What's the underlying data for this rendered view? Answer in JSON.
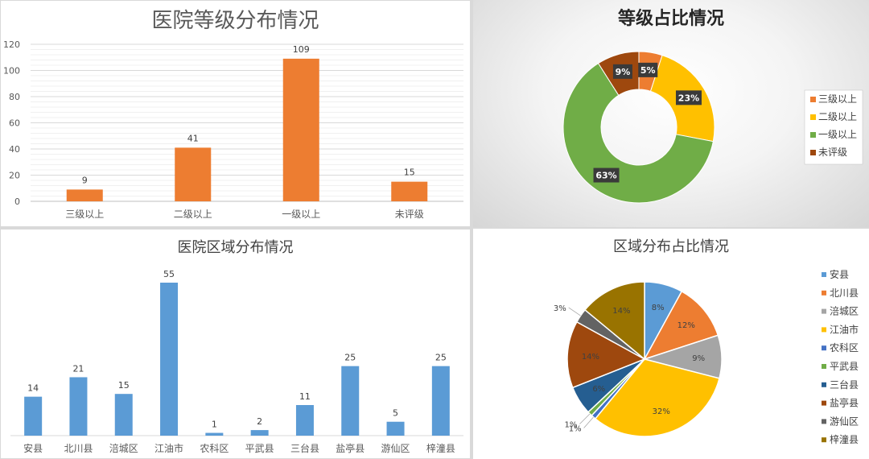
{
  "chart_data": [
    {
      "type": "bar",
      "title": "医院等级分布情况",
      "categories": [
        "三级以上",
        "二级以上",
        "一级以上",
        "未评级"
      ],
      "values": [
        9,
        41,
        109,
        15
      ],
      "ylim": [
        0,
        120
      ],
      "yticks": [
        0,
        20,
        40,
        60,
        80,
        100,
        120
      ],
      "grid": true,
      "color": "#ed7d31"
    },
    {
      "type": "pie",
      "variant": "donut",
      "title": "等级占比情况",
      "categories": [
        "三级以上",
        "二级以上",
        "一级以上",
        "未评级"
      ],
      "values": [
        5,
        23,
        63,
        9
      ],
      "labels": [
        "5%",
        "23%",
        "63%",
        "9%"
      ],
      "colors": [
        "#ed7d31",
        "#ffc000",
        "#70ad47",
        "#9e480e"
      ],
      "legend": "right"
    },
    {
      "type": "bar",
      "title": "医院区域分布情况",
      "categories": [
        "安县",
        "北川县",
        "涪城区",
        "江油市",
        "农科区",
        "平武县",
        "三台县",
        "盐亭县",
        "游仙区",
        "梓潼县"
      ],
      "values": [
        14,
        21,
        15,
        55,
        1,
        2,
        11,
        25,
        5,
        25
      ],
      "color": "#5b9bd5"
    },
    {
      "type": "pie",
      "title": "区域分布占比情况",
      "categories": [
        "安县",
        "北川县",
        "涪城区",
        "江油市",
        "农科区",
        "平武县",
        "三台县",
        "盐亭县",
        "游仙区",
        "梓潼县"
      ],
      "values": [
        8,
        12,
        9,
        32,
        1,
        1,
        6,
        14,
        3,
        14
      ],
      "labels": [
        "8%",
        "12%",
        "9%",
        "32%",
        "1%",
        "1%",
        "6%",
        "14%",
        "3%",
        "14%"
      ],
      "colors": [
        "#5b9bd5",
        "#ed7d31",
        "#a5a5a5",
        "#ffc000",
        "#4472c4",
        "#70ad47",
        "#255e91",
        "#9e480e",
        "#636363",
        "#997300"
      ],
      "legend": "right"
    }
  ]
}
